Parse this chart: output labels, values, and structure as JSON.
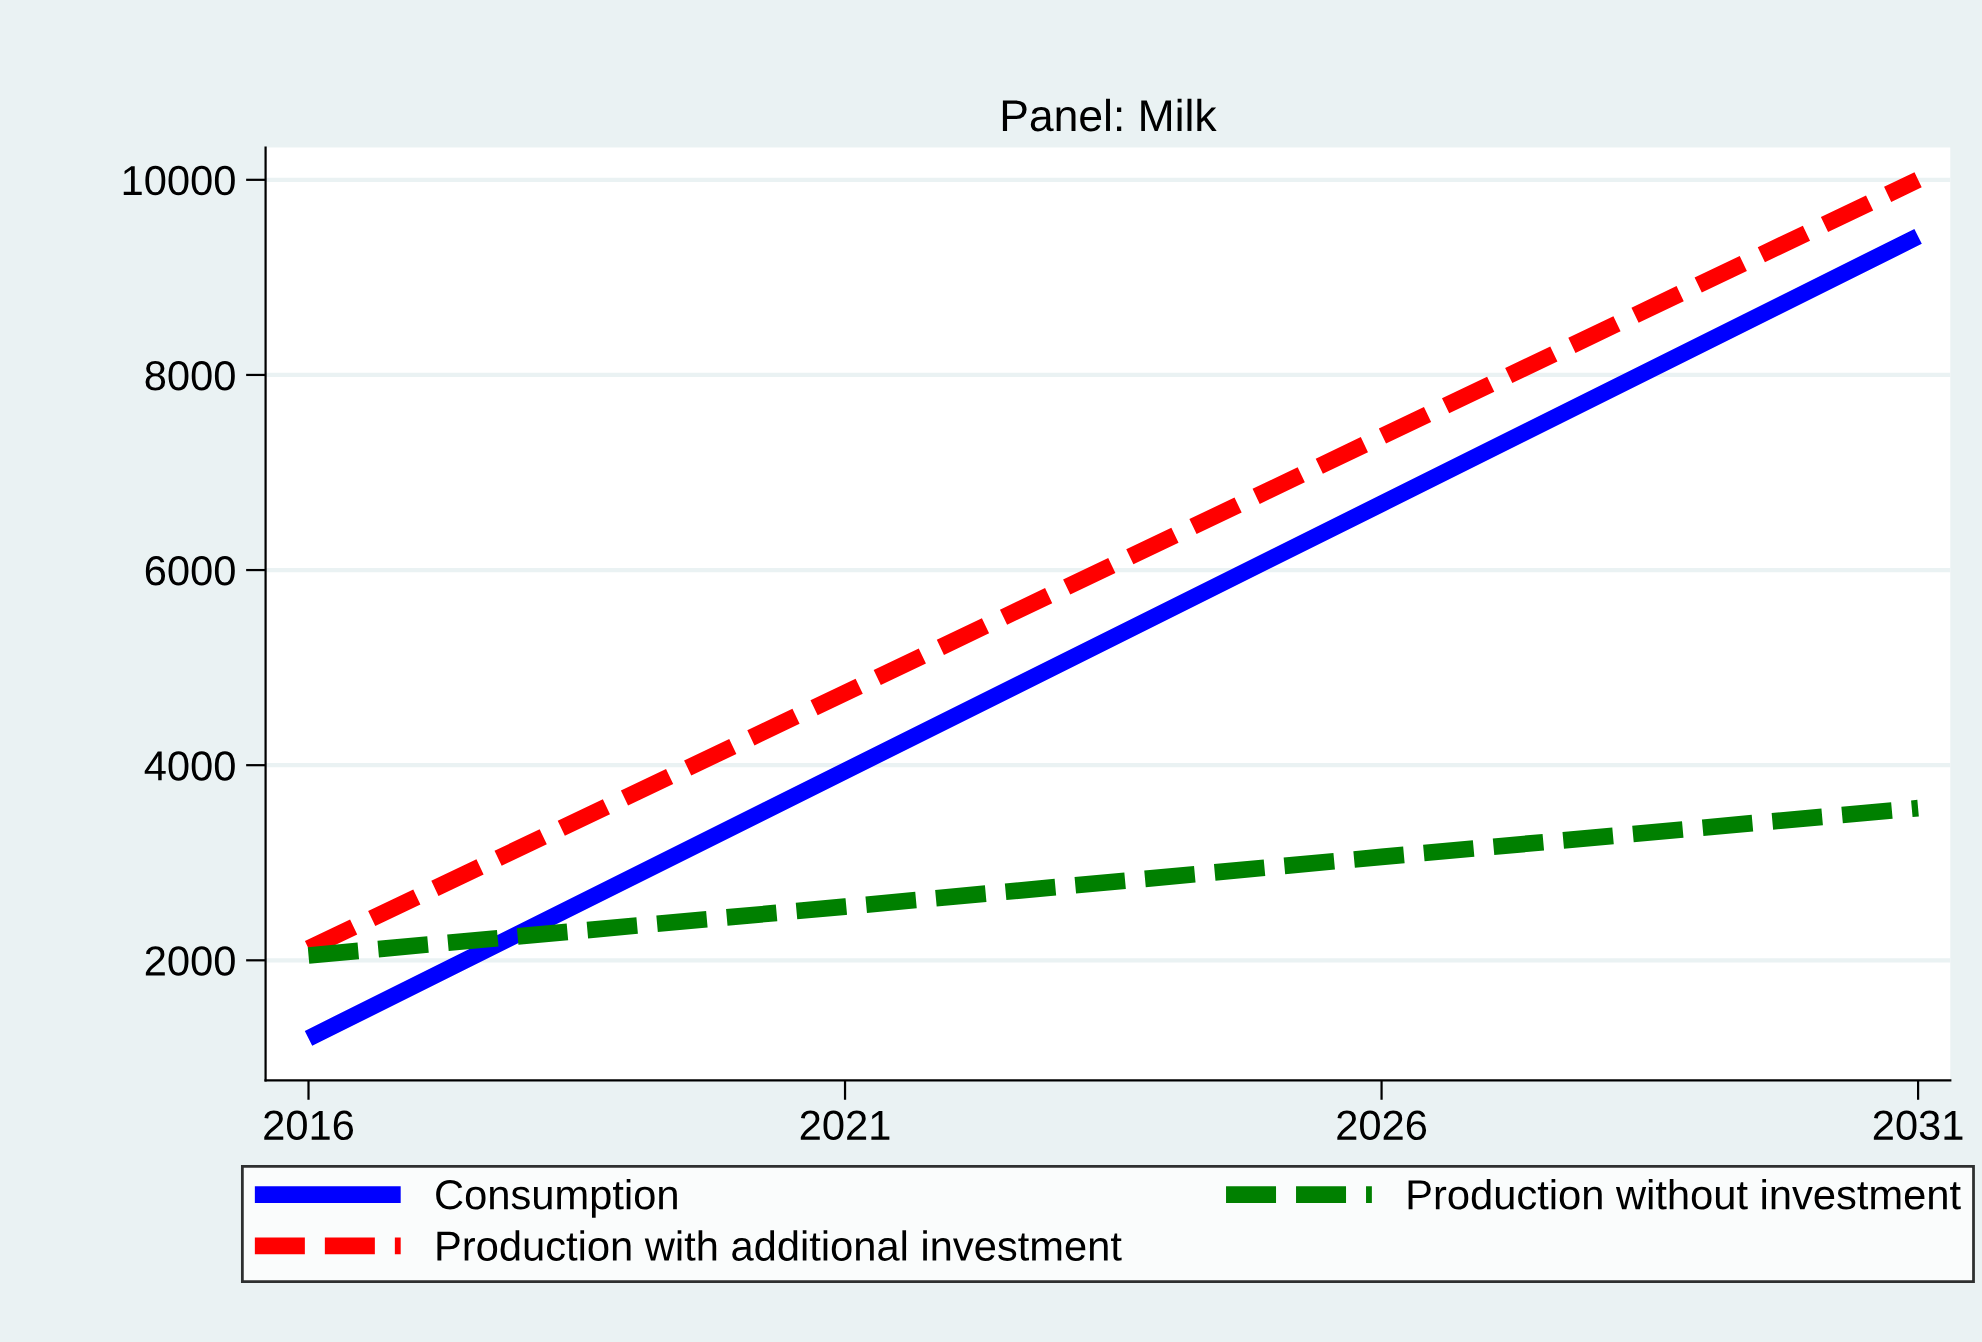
{
  "chart_data": {
    "type": "line",
    "title": "Panel: Milk",
    "x": [
      2016,
      2021,
      2026,
      2031
    ],
    "xlim": [
      2015.6,
      2031.3
    ],
    "xticks": [
      2016,
      2021,
      2026,
      2031
    ],
    "ylim": [
      770,
      10330
    ],
    "yticks": [
      2000,
      4000,
      6000,
      8000,
      10000
    ],
    "grid": "y",
    "legend": "bottom",
    "series": [
      {
        "name": "Consumption",
        "color": "#0000ff",
        "line_style": "solid",
        "values": [
          1200,
          3940,
          6680,
          9420
        ]
      },
      {
        "name": "Production with additional investment",
        "color": "#ff0000",
        "line_style": "dashed",
        "values": [
          2120,
          4740,
          7370,
          10000
        ]
      },
      {
        "name": "Production without investment",
        "color": "#008000",
        "line_style": "dashed",
        "values": [
          2050,
          2550,
          3060,
          3560
        ]
      }
    ]
  }
}
